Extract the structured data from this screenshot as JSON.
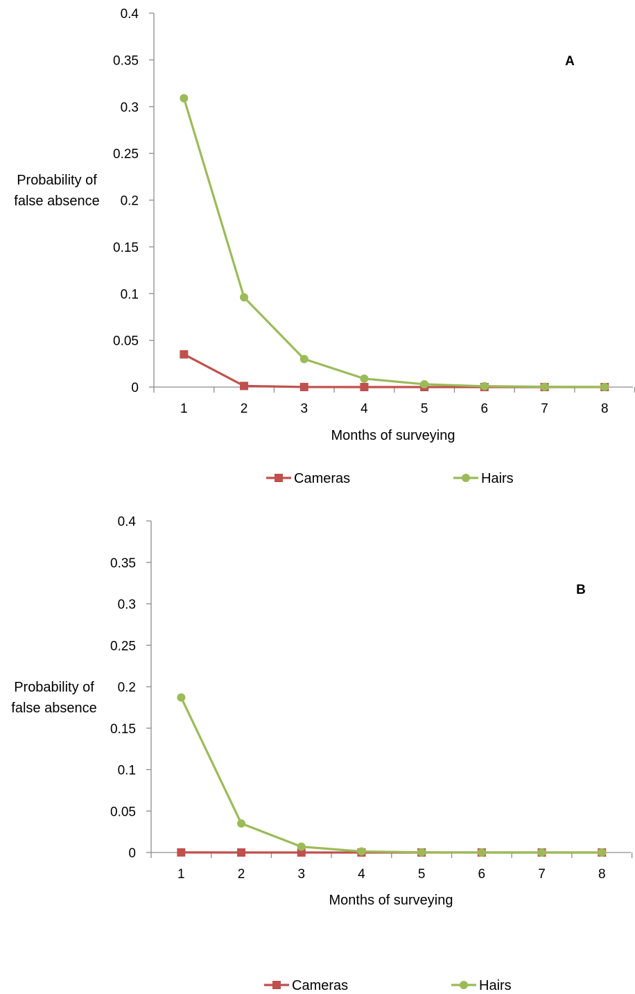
{
  "colors": {
    "cameras": "#C0504D",
    "hairs": "#9BBB59",
    "axis": "#8C8C8C",
    "text": "#000000"
  },
  "chart_data": [
    {
      "type": "line",
      "panel_label": "A",
      "ylabel_lines": [
        "Probability of",
        "false absence"
      ],
      "xlabel": "Months of surveying",
      "x": [
        1,
        2,
        3,
        4,
        5,
        6,
        7,
        8
      ],
      "ylim": [
        0,
        0.4
      ],
      "yticks": [
        0,
        0.05,
        0.1,
        0.15,
        0.2,
        0.25,
        0.3,
        0.35,
        0.4
      ],
      "ytick_labels": [
        "0",
        "0.05",
        "0.1",
        "0.15",
        "0.2",
        "0.25",
        "0.3",
        "0.35",
        "0.4"
      ],
      "xtick_labels": [
        "1",
        "2",
        "3",
        "4",
        "5",
        "6",
        "7",
        "8"
      ],
      "grid": false,
      "legend_position": "bottom",
      "series": [
        {
          "name": "Cameras",
          "marker": "square",
          "values": [
            0.035,
            0.0012,
            4e-05,
            0.0,
            0.0,
            0.0,
            0.0,
            0.0
          ]
        },
        {
          "name": "Hairs",
          "marker": "circle",
          "values": [
            0.309,
            0.096,
            0.03,
            0.009,
            0.003,
            0.0009,
            0.0003,
            0.0001
          ]
        }
      ]
    },
    {
      "type": "line",
      "panel_label": "B",
      "ylabel_lines": [
        "Probability of",
        "false absence"
      ],
      "xlabel": "Months of surveying",
      "x": [
        1,
        2,
        3,
        4,
        5,
        6,
        7,
        8
      ],
      "ylim": [
        0,
        0.4
      ],
      "yticks": [
        0,
        0.05,
        0.1,
        0.15,
        0.2,
        0.25,
        0.3,
        0.35,
        0.4
      ],
      "ytick_labels": [
        "0",
        "0.05",
        "0.1",
        "0.15",
        "0.2",
        "0.25",
        "0.3",
        "0.35",
        "0.4"
      ],
      "xtick_labels": [
        "1",
        "2",
        "3",
        "4",
        "5",
        "6",
        "7",
        "8"
      ],
      "grid": false,
      "legend_position": "bottom",
      "series": [
        {
          "name": "Cameras",
          "marker": "square",
          "values": [
            0.0001,
            0.0,
            0.0,
            0.0,
            0.0,
            0.0,
            0.0,
            0.0
          ]
        },
        {
          "name": "Hairs",
          "marker": "circle",
          "values": [
            0.187,
            0.035,
            0.007,
            0.0013,
            0.0002,
            0.0,
            0.0,
            0.0
          ]
        }
      ]
    }
  ]
}
